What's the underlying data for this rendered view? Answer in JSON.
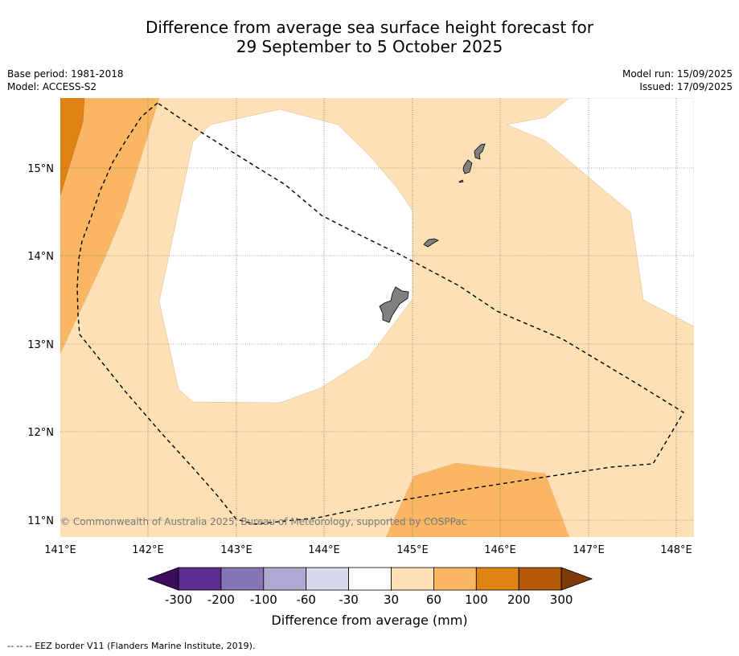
{
  "title_line1": "Difference from average sea surface height forecast for",
  "title_line2": "29 September to 5 October 2025",
  "base_period": "Base period: 1981-2018",
  "model": "Model: ACCESS-S2",
  "model_run": "Model run: 15/09/2025",
  "issued": "Issued: 17/09/2025",
  "copyright": "© Commonwealth of Australia 2025, Bureau of Meteorology, supported by COSPPac",
  "footer": "--  --  -- EEZ border V11 (Flanders Marine Institute, 2019).",
  "lat_labels": [
    "15°N",
    "14°N",
    "13°N",
    "12°N",
    "11°N"
  ],
  "lon_labels": [
    "141°E",
    "142°E",
    "143°E",
    "144°E",
    "145°E",
    "146°E",
    "147°E",
    "148°E"
  ],
  "colorbar": {
    "label": "Difference from average (mm)",
    "ticks": [
      "-300",
      "-200",
      "-100",
      "-60",
      "-30",
      "30",
      "60",
      "100",
      "200",
      "300"
    ],
    "colors": [
      "#3d0b5a",
      "#5a2d8e",
      "#8675b3",
      "#b0a8d2",
      "#d8d9ec",
      "#ffffff",
      "#fde0b6",
      "#fab663",
      "#e08214",
      "#b35806",
      "#7f3b08"
    ]
  },
  "colors": {
    "band_60_100": "#fab663",
    "band_100_200": "#e08214",
    "band_30_60": "#fde0b6",
    "land": "#808080"
  }
}
